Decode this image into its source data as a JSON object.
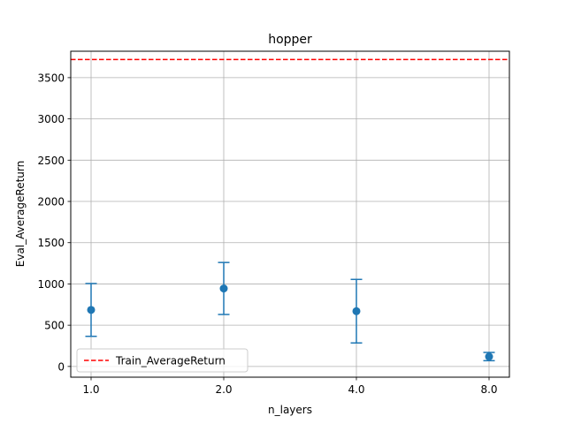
{
  "chart_data": {
    "type": "scatter",
    "title": "hopper",
    "xlabel": "n_layers",
    "ylabel": "Eval_AverageReturn",
    "categories": [
      "1.0",
      "2.0",
      "4.0",
      "8.0"
    ],
    "series": [
      {
        "values": [
          685,
          945,
          670,
          120
        ],
        "err_low": [
          365,
          630,
          285,
          70
        ],
        "err_high": [
          1005,
          1260,
          1055,
          170
        ],
        "color": "#1f77b4"
      }
    ],
    "reference_line": {
      "name": "Train_AverageReturn",
      "value": 3720,
      "color": "#ff0000",
      "style": "dashed"
    },
    "ylim": [
      -130,
      3820
    ],
    "yticks": [
      0,
      500,
      1000,
      1500,
      2000,
      2500,
      3000,
      3500
    ],
    "grid": true,
    "legend_position": "lower-left"
  }
}
